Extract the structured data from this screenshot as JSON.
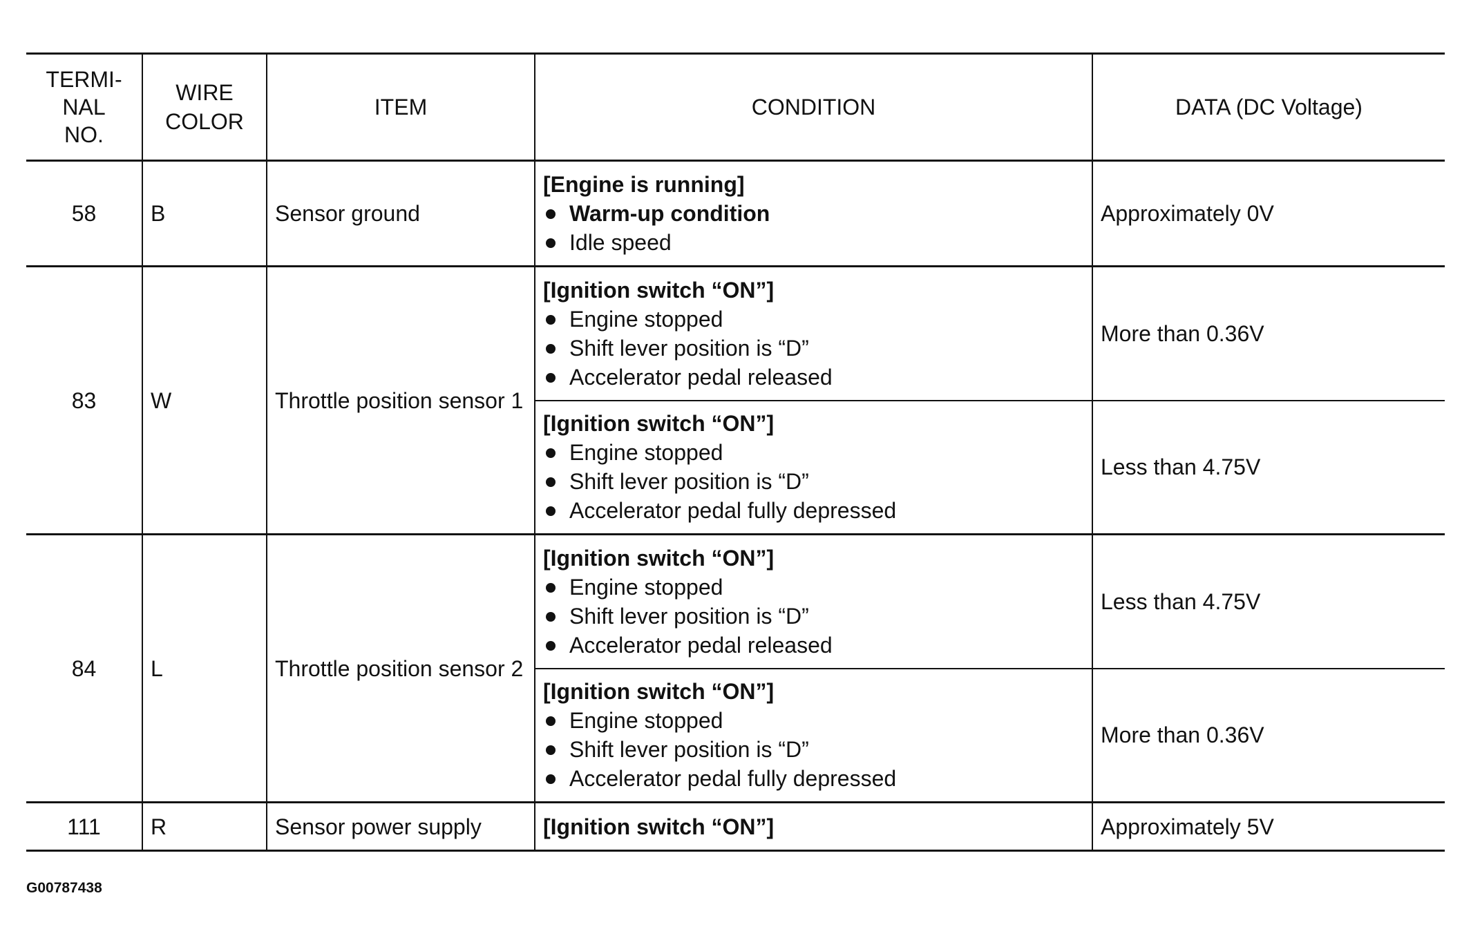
{
  "headers": {
    "terminal": "TERMI-\nNAL\nNO.",
    "wire": "WIRE\nCOLOR",
    "item": "ITEM",
    "condition": "CONDITION",
    "data": "DATA (DC Voltage)"
  },
  "rows": [
    {
      "terminal": "58",
      "wire": "B",
      "item": "Sensor ground",
      "conditions": [
        {
          "head": "[Engine is running]",
          "bullets": [
            "Warm-up condition",
            "Idle speed"
          ],
          "data": "Approximately 0V"
        }
      ]
    },
    {
      "terminal": "83",
      "wire": "W",
      "item": "Throttle position sensor 1",
      "conditions": [
        {
          "head": "[Ignition switch “ON”]",
          "bullets": [
            "Engine stopped",
            "Shift lever position is “D”",
            "Accelerator pedal released"
          ],
          "data": "More than 0.36V"
        },
        {
          "head": "[Ignition switch “ON”]",
          "bullets": [
            "Engine stopped",
            "Shift lever position is “D”",
            "Accelerator pedal fully depressed"
          ],
          "data": "Less than 4.75V"
        }
      ]
    },
    {
      "terminal": "84",
      "wire": "L",
      "item": "Throttle position sensor 2",
      "conditions": [
        {
          "head": "[Ignition switch “ON”]",
          "bullets": [
            "Engine stopped",
            "Shift lever position is “D”",
            "Accelerator pedal released"
          ],
          "data": "Less than 4.75V"
        },
        {
          "head": "[Ignition switch “ON”]",
          "bullets": [
            "Engine stopped",
            "Shift lever position is “D”",
            "Accelerator pedal fully depressed"
          ],
          "data": "More than 0.36V"
        }
      ]
    },
    {
      "terminal": "111",
      "wire": "R",
      "item": "Sensor power supply",
      "conditions": [
        {
          "head": "[Ignition switch “ON”]",
          "bullets": [],
          "data": "Approximately 5V"
        }
      ]
    }
  ],
  "footer": "G00787438"
}
